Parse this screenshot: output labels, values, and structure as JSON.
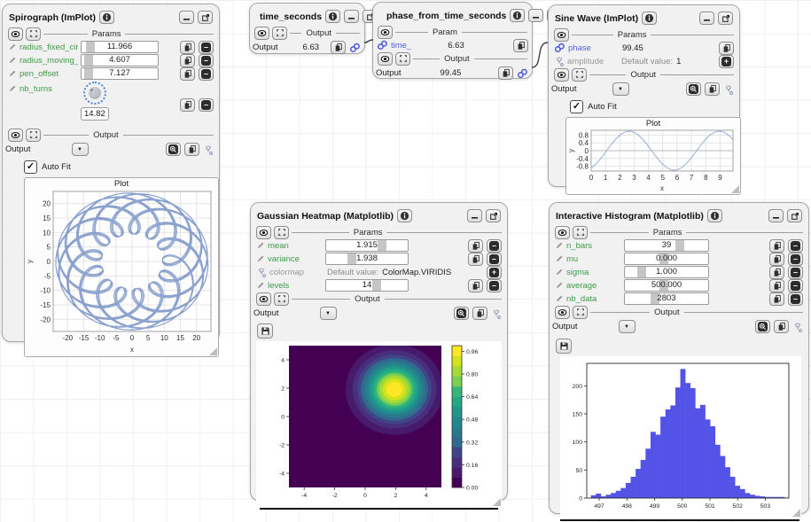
{
  "colors": {
    "param_green": "#3d9c45",
    "linked_blue": "#545fd6",
    "link_icon_blue": "#4b57d8",
    "hist_bar": "#5353e8",
    "implot_line": "#5b7cba"
  },
  "nodes": {
    "spirograph": {
      "title": "Spirograph (ImPlot)",
      "params_header": "Params",
      "output_header": "Output",
      "output_label": "Output",
      "auto_fit": "Auto Fit",
      "params": [
        {
          "name": "radius_fixed_circl.",
          "value": "11.966",
          "fill": 0.12
        },
        {
          "name": "radius_moving_ci.",
          "value": "4.607",
          "fill": 0.09
        },
        {
          "name": "pen_offset",
          "value": "7.127",
          "fill": 0.09
        },
        {
          "name": "nb_turns",
          "value": "14.82"
        }
      ]
    },
    "time_seconds": {
      "title": "time_seconds",
      "output_header": "Output",
      "output_label": "Output",
      "output_value": "6.63"
    },
    "phase_from_time": {
      "title": "phase_from_time_seconds",
      "param_header": "Param",
      "param": {
        "name": "time_",
        "value": "6.63"
      },
      "output_header": "Output",
      "output_label": "Output",
      "output_value": "99.45"
    },
    "sine": {
      "title": "Sine Wave (ImPlot)",
      "params_header": "Params",
      "output_header": "Output",
      "output_label": "Output",
      "auto_fit": "Auto Fit",
      "params": [
        {
          "name": "phase",
          "value": "99.45"
        },
        {
          "name": "amplitude",
          "default_label": "Default value:",
          "value": "1"
        }
      ]
    },
    "gaussian": {
      "title": "Gaussian Heatmap (Matplotlib)",
      "params_header": "Params",
      "output_header": "Output",
      "output_label": "Output",
      "params": [
        {
          "name": "mean",
          "value": "1.915",
          "fill": 0.68
        },
        {
          "name": "variance",
          "value": "1.938",
          "fill": 0.31
        },
        {
          "name": "colormap",
          "default_label": "Default value:",
          "value": "ColorMap.VIRIDIS"
        },
        {
          "name": "levels",
          "value": "14",
          "fill": 0.62
        }
      ]
    },
    "histogram": {
      "title": "Interactive Histogram (Matplotlib)",
      "params_header": "Params",
      "output_header": "Output",
      "output_label": "Output",
      "params": [
        {
          "name": "n_bars",
          "value": "39",
          "fill": 0.66
        },
        {
          "name": "mu",
          "value": "0.000",
          "fill": 0.47
        },
        {
          "name": "sigma",
          "value": "1.000",
          "fill": 0.2
        },
        {
          "name": "average",
          "value": "500.000",
          "fill": 0.47
        },
        {
          "name": "nb_data",
          "value": "2803",
          "fill": 0.36
        }
      ]
    }
  },
  "chart_data": [
    {
      "id": "spirograph",
      "type": "line",
      "title": "Plot",
      "xlabel": "x",
      "ylabel": "y",
      "xlim": [
        -24.5,
        24.5
      ],
      "ylim": [
        -24.2,
        24.2
      ],
      "xticks": [
        -20,
        -15,
        -10,
        -5,
        0,
        5,
        10,
        15,
        20
      ],
      "yticks": [
        -20,
        -15,
        -10,
        -5,
        0,
        5,
        10,
        15,
        20
      ],
      "grid": true,
      "curve": "epitrochoid",
      "params": {
        "R": 11.966,
        "r": 4.607,
        "d": 7.127,
        "turns": 14.82
      },
      "line_color": "#5b7cba"
    },
    {
      "id": "sine",
      "type": "line",
      "title": "Plot",
      "xlabel": "x",
      "ylabel": "y",
      "xlim": [
        0,
        9.9
      ],
      "ylim": [
        -1.05,
        1.05
      ],
      "xticks": [
        0,
        1,
        2,
        3,
        4,
        5,
        6,
        7,
        8,
        9
      ],
      "yticks": [
        -0.8,
        -0.4,
        0,
        0.4,
        0.8
      ],
      "grid": true,
      "dark_zero": true,
      "curve": "sine",
      "params": {
        "phase": 99.45,
        "amplitude": 1
      },
      "line_color": "#7b95cc"
    },
    {
      "id": "heatmap",
      "type": "heatmap",
      "xlim": [
        -5,
        5
      ],
      "ylim": [
        -5,
        5
      ],
      "xticks": [
        -4,
        -2,
        0,
        2,
        4
      ],
      "yticks": [
        -4,
        -2,
        0,
        2,
        4
      ],
      "center": [
        1.915,
        1.915
      ],
      "variance": 1.938,
      "levels": 14,
      "colormap": "viridis",
      "viridis": [
        "#440154",
        "#481a6c",
        "#472f7d",
        "#414487",
        "#39568c",
        "#31688e",
        "#2a788e",
        "#23888e",
        "#1f988b",
        "#22a884",
        "#35b779",
        "#54c568",
        "#7ad151",
        "#a5db36",
        "#d2e21b",
        "#fde725"
      ],
      "colorbar_ticks": [
        "0.00",
        "0.16",
        "0.32",
        "0.48",
        "0.64",
        "0.80",
        "0.96"
      ],
      "vmax": 1.0
    },
    {
      "id": "histogram",
      "type": "bar",
      "xlim": [
        496.55,
        503.85
      ],
      "ylim": [
        0,
        240
      ],
      "xticks": [
        497,
        498,
        499,
        500,
        501,
        502,
        503
      ],
      "yticks": [
        0,
        50,
        100,
        150,
        200
      ],
      "bin_start": 496.7,
      "bin_width": 0.1794,
      "values": [
        5,
        8,
        3,
        6,
        9,
        13,
        18,
        27,
        38,
        52,
        68,
        88,
        118,
        113,
        145,
        158,
        165,
        197,
        230,
        205,
        196,
        160,
        166,
        140,
        128,
        95,
        75,
        55,
        38,
        22,
        16,
        9,
        6,
        4,
        3,
        2,
        2,
        2,
        2
      ],
      "bar_color": "#5353e8"
    }
  ]
}
